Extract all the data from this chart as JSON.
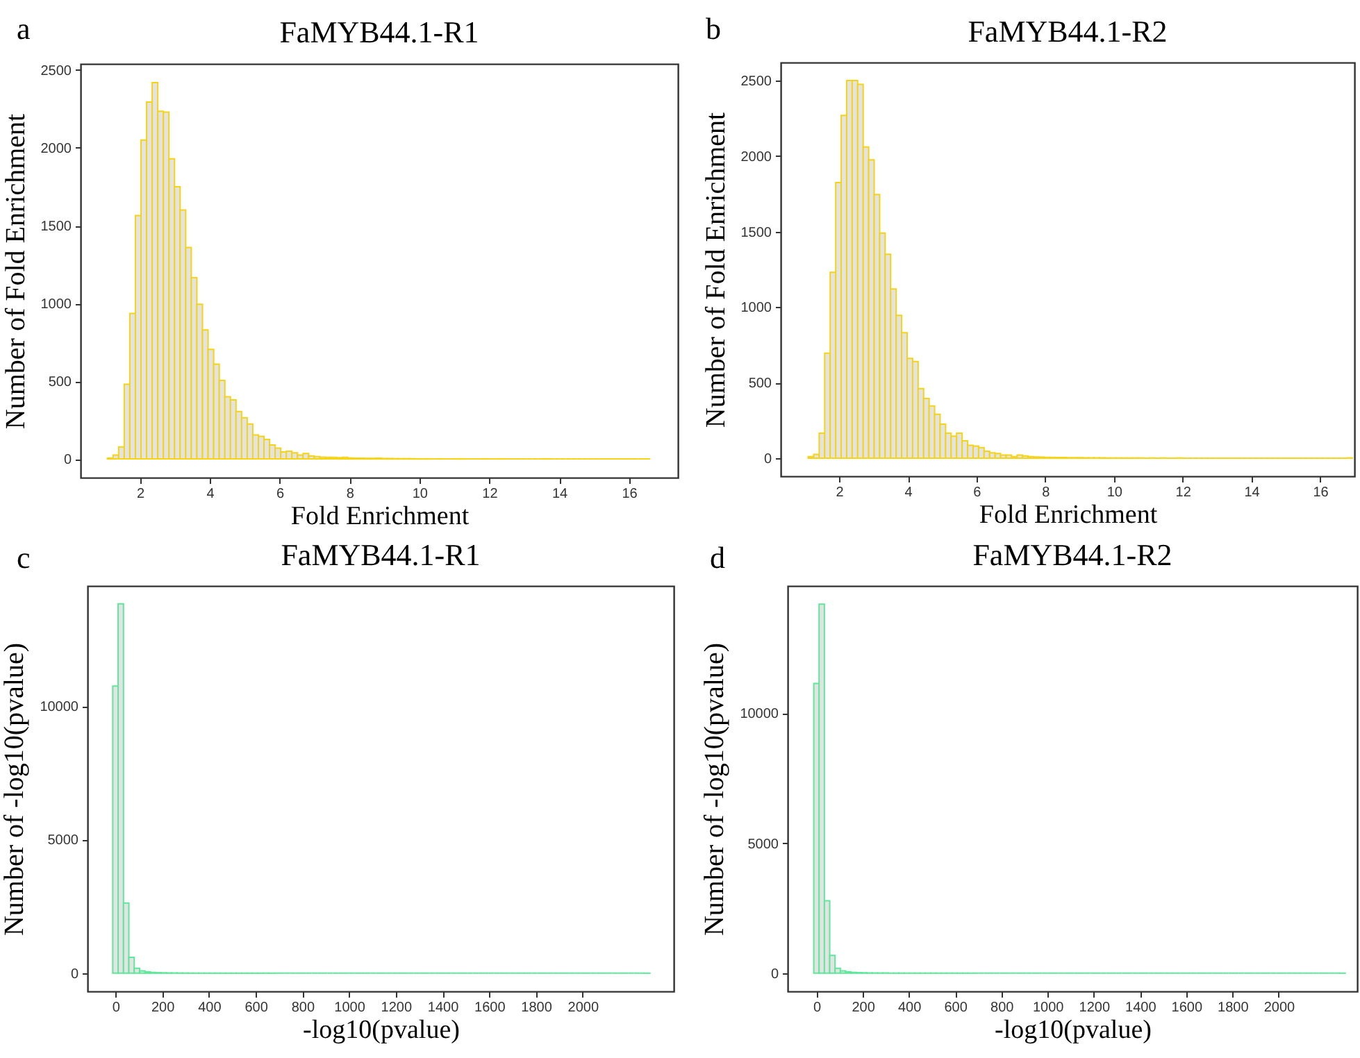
{
  "chart_data": [
    {
      "type": "histogram",
      "title": "FaMYB44.1-R1",
      "xlabel": "Fold Enrichment",
      "ylabel": "Number of Fold Enrichment",
      "annotations": [
        "a"
      ],
      "bins": [
        1.07,
        1.23,
        1.39,
        1.55,
        1.71,
        1.87,
        2.03,
        2.19,
        2.35,
        2.51,
        2.67,
        2.83,
        2.99,
        3.15,
        3.31,
        3.47,
        3.63,
        3.79,
        3.95,
        4.11,
        4.27,
        4.43,
        4.59,
        4.75,
        4.91,
        5.07,
        5.23,
        5.39,
        5.55,
        5.71,
        5.87,
        6.03,
        6.19,
        6.35,
        6.51,
        6.67,
        6.83,
        6.99,
        7.15,
        7.31,
        7.47,
        7.63,
        7.79,
        7.95,
        8.11,
        8.27,
        8.43,
        8.59,
        8.75,
        8.91,
        9.07,
        9.23,
        9.39,
        9.55,
        9.71,
        9.87,
        10.03,
        10.19,
        10.35,
        10.51,
        10.67,
        10.83,
        10.99,
        11.15,
        11.31,
        11.47,
        11.63,
        11.79,
        11.95,
        12.11,
        12.27,
        12.43,
        12.59,
        12.75,
        12.91,
        13.07,
        13.23,
        13.39,
        13.55,
        13.71,
        13.87,
        14.03,
        14.19,
        14.35,
        14.51,
        14.67,
        14.83,
        14.99,
        15.15,
        15.31,
        15.47,
        15.63,
        15.79,
        15.95,
        16.11,
        16.27,
        16.43,
        16.59
      ],
      "series": [
        {
          "color": "#f5d416",
          "values": [
            5,
            25,
            77,
            480,
            935,
            1565,
            2050,
            2295,
            2420,
            2235,
            2230,
            1930,
            1750,
            1600,
            1360,
            1165,
            995,
            830,
            705,
            610,
            505,
            400,
            380,
            305,
            265,
            225,
            155,
            145,
            125,
            90,
            70,
            45,
            50,
            40,
            25,
            35,
            20,
            15,
            12,
            10,
            10,
            8,
            10,
            6,
            5,
            5,
            4,
            4,
            5,
            3,
            3,
            2,
            2,
            2,
            2,
            1,
            1,
            1,
            1,
            1,
            1,
            1,
            1,
            1,
            0,
            1,
            0,
            1,
            0,
            0,
            1,
            0,
            0,
            0,
            0,
            0,
            0,
            0,
            1,
            0,
            0,
            0,
            0,
            0,
            0,
            0,
            0,
            0,
            0,
            0,
            0,
            0,
            0,
            0,
            0,
            0,
            1
          ]
        }
      ],
      "xlim": [
        0.3,
        17.4
      ],
      "ylim": [
        -120,
        2540
      ],
      "xticks": [
        2,
        4,
        6,
        8,
        10,
        12,
        14,
        16
      ],
      "yticks": [
        0,
        500,
        1000,
        1500,
        2000,
        2500
      ]
    },
    {
      "type": "histogram",
      "title": "FaMYB44.1-R2",
      "xlabel": "Fold Enrichment",
      "ylabel": "Number of Fold Enrichment",
      "annotations": [
        "b"
      ],
      "bins": [
        1.1,
        1.26,
        1.42,
        1.58,
        1.74,
        1.9,
        2.06,
        2.22,
        2.38,
        2.54,
        2.7,
        2.86,
        3.02,
        3.18,
        3.34,
        3.5,
        3.66,
        3.82,
        3.98,
        4.14,
        4.3,
        4.46,
        4.62,
        4.78,
        4.94,
        5.1,
        5.26,
        5.42,
        5.58,
        5.74,
        5.9,
        6.06,
        6.22,
        6.38,
        6.54,
        6.7,
        6.86,
        7.02,
        7.18,
        7.34,
        7.5,
        7.66,
        7.82,
        7.98,
        8.14,
        8.3,
        8.46,
        8.62,
        8.78,
        8.94,
        9.1,
        9.26,
        9.42,
        9.58,
        9.74,
        9.9,
        10.06,
        10.22,
        10.38,
        10.54,
        10.7,
        10.86,
        11.02,
        11.18,
        11.34,
        11.5,
        11.66,
        11.82,
        11.98,
        12.14,
        12.3,
        12.46,
        12.62,
        12.78,
        12.94,
        13.1,
        13.26,
        13.42,
        13.58,
        13.74,
        13.9,
        14.06,
        14.22,
        14.38,
        14.54,
        14.7,
        14.86,
        15.02,
        15.18,
        15.34,
        15.5,
        15.66,
        15.82,
        15.98,
        16.14,
        16.3,
        16.46,
        16.62,
        16.78,
        16.94
      ],
      "series": [
        {
          "color": "#f5d416",
          "values": [
            10,
            25,
            165,
            695,
            1230,
            1825,
            2270,
            2500,
            2500,
            2475,
            2060,
            1975,
            1745,
            1490,
            1350,
            1120,
            945,
            830,
            660,
            640,
            460,
            395,
            345,
            290,
            225,
            165,
            145,
            165,
            115,
            85,
            80,
            70,
            45,
            35,
            30,
            20,
            20,
            10,
            20,
            15,
            10,
            8,
            6,
            5,
            5,
            4,
            4,
            3,
            3,
            3,
            2,
            2,
            2,
            2,
            1,
            1,
            1,
            1,
            1,
            1,
            1,
            0,
            1,
            0,
            1,
            0,
            0,
            1,
            0,
            0,
            0,
            0,
            0,
            0,
            0,
            0,
            0,
            0,
            0,
            0,
            0,
            0,
            0,
            0,
            0,
            0,
            0,
            0,
            0,
            0,
            0,
            0,
            0,
            0,
            0,
            0,
            0,
            0,
            1
          ]
        }
      ],
      "xlim": [
        0.3,
        17.0
      ],
      "ylim": [
        -120,
        2620
      ],
      "xticks": [
        2,
        4,
        6,
        8,
        10,
        12,
        14,
        16
      ],
      "yticks": [
        0,
        500,
        1000,
        1500,
        2000,
        2500
      ]
    },
    {
      "type": "histogram",
      "title": "FaMYB44.1-R1",
      "xlabel": "-log10(pvalue)",
      "ylabel": "Number of -log10(pvalue)",
      "annotations": [
        "c"
      ],
      "bins": [
        -12,
        11,
        34,
        57,
        80,
        103,
        126,
        149,
        172,
        195,
        218,
        241,
        264,
        287,
        310,
        333,
        356,
        379,
        402,
        425,
        448,
        471,
        494,
        517,
        540,
        563,
        586,
        609,
        632,
        655,
        678,
        701,
        724,
        747,
        770,
        793,
        816,
        839,
        862,
        885,
        908,
        931,
        954,
        977,
        1000,
        1023,
        1046,
        1069,
        1092,
        1115,
        1138,
        1161,
        1184,
        1207,
        1230,
        1253,
        1276,
        1299,
        1322,
        1345,
        1368,
        1391,
        1414,
        1437,
        1460,
        1483,
        1506,
        1529,
        1552,
        1575,
        1598,
        1621,
        1644,
        1667,
        1690,
        1713,
        1736,
        1759,
        1782,
        1805,
        1828,
        1851,
        1874,
        1897,
        1920,
        1943,
        1966,
        1989,
        2012,
        2035,
        2058,
        2081,
        2104,
        2127,
        2150,
        2173,
        2196,
        2219,
        2242,
        2265,
        2288
      ],
      "series": [
        {
          "color": "#5ee89a",
          "values": [
            10750,
            13830,
            2630,
            595,
            185,
            85,
            50,
            30,
            20,
            15,
            10,
            8,
            6,
            5,
            4,
            3,
            3,
            2,
            2,
            2,
            1,
            1,
            1,
            1,
            1,
            1,
            1,
            1,
            1,
            1,
            0,
            0,
            0,
            0,
            0,
            0,
            0,
            0,
            0,
            0,
            0,
            0,
            0,
            0,
            0,
            0,
            0,
            0,
            0,
            0,
            0,
            0,
            0,
            0,
            0,
            0,
            0,
            0,
            0,
            0,
            0,
            0,
            0,
            0,
            0,
            0,
            0,
            0,
            0,
            0,
            0,
            0,
            0,
            0,
            0,
            0,
            0,
            0,
            0,
            0,
            0,
            0,
            0,
            0,
            0,
            0,
            0,
            0,
            0,
            0,
            0,
            0,
            0,
            0,
            0,
            0,
            0,
            0,
            0,
            1
          ]
        }
      ],
      "xlim": [
        -120,
        2390
      ],
      "ylim": [
        -680,
        14500
      ],
      "xticks": [
        0,
        200,
        400,
        600,
        800,
        1000,
        1200,
        1400,
        1600,
        1800,
        2000
      ],
      "yticks": [
        0,
        5000,
        10000
      ]
    },
    {
      "type": "histogram",
      "title": "FaMYB44.1-R2",
      "xlabel": "-log10(pvalue)",
      "ylabel": "Number of -log10(pvalue)",
      "annotations": [
        "d"
      ],
      "bins": [
        -12,
        11,
        34,
        57,
        80,
        103,
        126,
        149,
        172,
        195,
        218,
        241,
        264,
        287,
        310,
        333,
        356,
        379,
        402,
        425,
        448,
        471,
        494,
        517,
        540,
        563,
        586,
        609,
        632,
        655,
        678,
        701,
        724,
        747,
        770,
        793,
        816,
        839,
        862,
        885,
        908,
        931,
        954,
        977,
        1000,
        1023,
        1046,
        1069,
        1092,
        1115,
        1138,
        1161,
        1184,
        1207,
        1230,
        1253,
        1276,
        1299,
        1322,
        1345,
        1368,
        1391,
        1414,
        1437,
        1460,
        1483,
        1506,
        1529,
        1552,
        1575,
        1598,
        1621,
        1644,
        1667,
        1690,
        1713,
        1736,
        1759,
        1782,
        1805,
        1828,
        1851,
        1874,
        1897,
        1920,
        1943,
        1966,
        1989,
        2012,
        2035,
        2058,
        2081,
        2104,
        2127,
        2150,
        2173,
        2196,
        2219,
        2242,
        2265,
        2288
      ],
      "series": [
        {
          "color": "#5ee89a",
          "values": [
            11150,
            14200,
            2785,
            680,
            190,
            85,
            50,
            30,
            20,
            15,
            10,
            8,
            6,
            5,
            4,
            3,
            3,
            2,
            2,
            2,
            1,
            1,
            1,
            1,
            1,
            1,
            1,
            1,
            1,
            1,
            0,
            0,
            0,
            0,
            0,
            0,
            0,
            0,
            0,
            0,
            0,
            0,
            0,
            0,
            0,
            0,
            0,
            0,
            0,
            0,
            0,
            0,
            0,
            0,
            0,
            0,
            0,
            0,
            0,
            0,
            0,
            0,
            0,
            0,
            0,
            0,
            0,
            0,
            0,
            0,
            0,
            0,
            0,
            0,
            0,
            0,
            0,
            0,
            0,
            0,
            0,
            0,
            0,
            0,
            0,
            0,
            0,
            0,
            0,
            0,
            0,
            0,
            0,
            0,
            0,
            0,
            0,
            0,
            0,
            1
          ]
        }
      ],
      "xlim": [
        -125,
        2340
      ],
      "ylim": [
        -700,
        14900
      ],
      "xticks": [
        0,
        200,
        400,
        600,
        800,
        1000,
        1200,
        1400,
        1600,
        1800,
        2000
      ],
      "yticks": [
        0,
        5000,
        10000
      ]
    }
  ]
}
